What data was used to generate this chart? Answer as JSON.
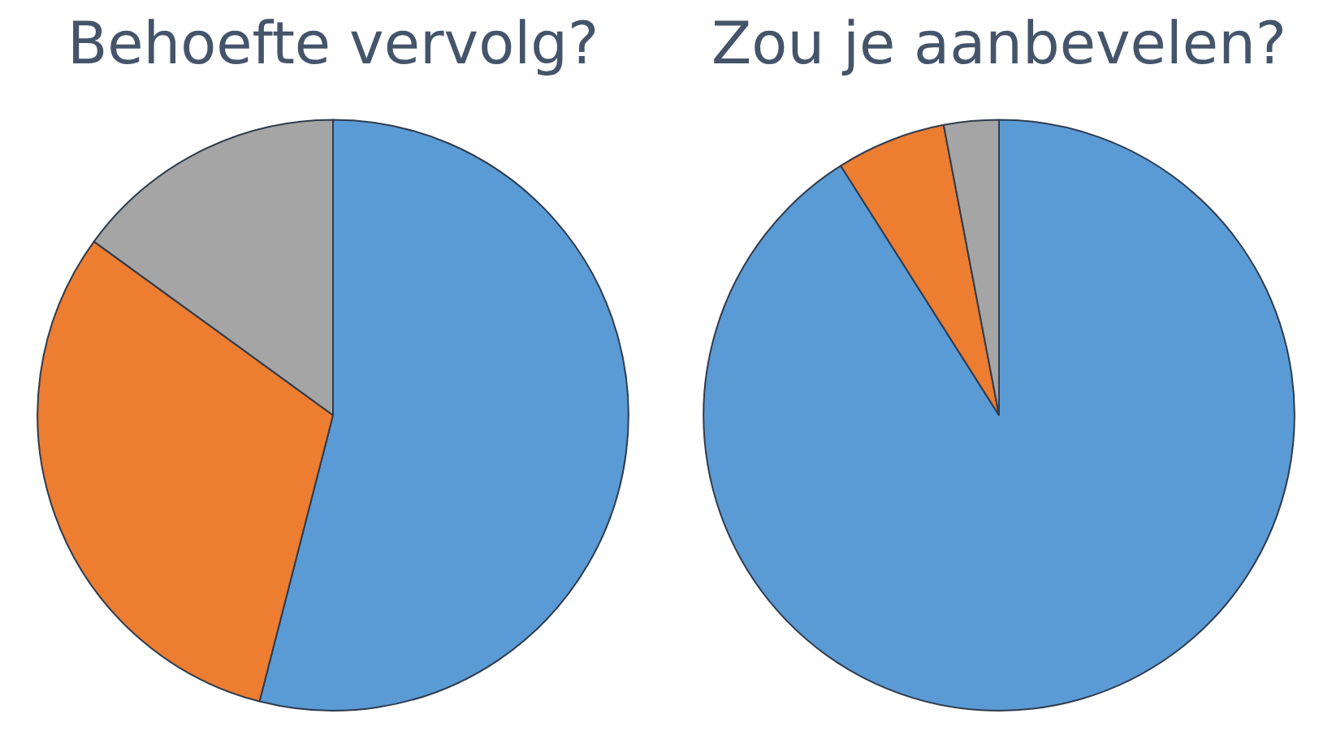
{
  "chart_data": [
    {
      "type": "pie",
      "title": "Behoefte vervolg?",
      "categories": [
        null,
        null,
        null
      ],
      "values": [
        54,
        31,
        15
      ],
      "colors": [
        "#5b9bd5",
        "#ed7d31",
        "#a5a5a5"
      ]
    },
    {
      "type": "pie",
      "title": "Zou je aanbevelen?",
      "categories": [
        null,
        null,
        null
      ],
      "values": [
        91,
        6,
        3
      ],
      "colors": [
        "#5b9bd5",
        "#ed7d31",
        "#a5a5a5"
      ]
    }
  ]
}
